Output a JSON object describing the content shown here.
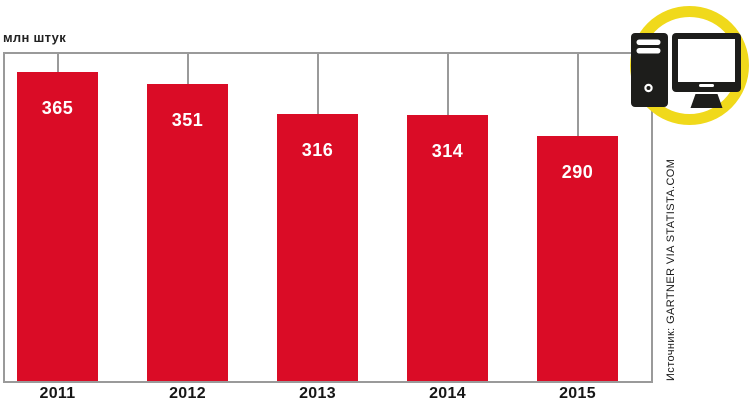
{
  "chart_data": {
    "type": "bar",
    "title": "",
    "unit_label": "млн штук",
    "categories": [
      "2011",
      "2012",
      "2013",
      "2014",
      "2015"
    ],
    "values": [
      365,
      351,
      316,
      314,
      290
    ],
    "ylim": [
      0,
      365
    ],
    "grid": false,
    "legend": false,
    "value_labels_shown": true,
    "source": "Источник: GARTNER VIA STATISTA.COM",
    "bar_color": "#DA0C26",
    "value_label_color": "#FFFFFF",
    "axis_line_color": "#9A9A9A"
  },
  "icon": {
    "name": "desktop-computer",
    "ring_color": "#F0D91B",
    "glyph_color": "#1D1D1B"
  }
}
